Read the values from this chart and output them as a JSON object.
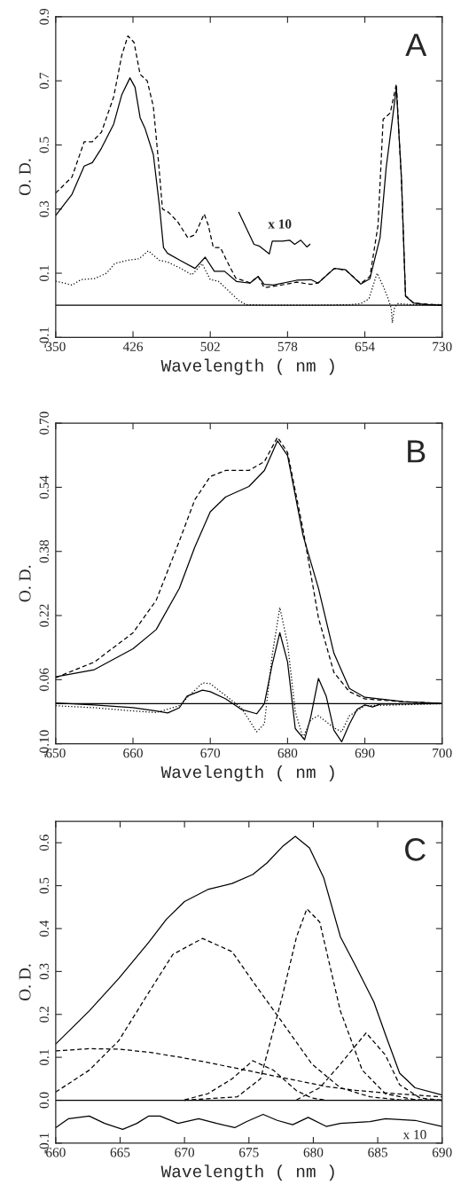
{
  "chart_data": [
    {
      "type": "line",
      "xlabel": "Wavelength ( nm )",
      "ylabel": "O. D.",
      "annotations": [
        "A",
        "x 10"
      ],
      "xlim": [
        350,
        730
      ],
      "xticks": [
        350,
        426,
        502,
        578,
        654,
        730
      ],
      "ylim": [
        -0.1,
        0.9
      ],
      "yticks": [
        -0.1,
        0.1,
        0.3,
        0.5,
        0.7,
        0.9
      ],
      "grid": false,
      "ref_lines": [
        {
          "axis": "y",
          "value": 0,
          "color": "#000000",
          "line_style": "solid"
        }
      ],
      "series": [
        {
          "color": "#000000",
          "line_style": "solid",
          "x": [
            350,
            366,
            378,
            386,
            395,
            407,
            415,
            423,
            428,
            433,
            438,
            446,
            452,
            456,
            460,
            473,
            487,
            497,
            506,
            516,
            528,
            541,
            549,
            555,
            564,
            587,
            601,
            608,
            624,
            635,
            650,
            659,
            669,
            675,
            680,
            685,
            690,
            694,
            702,
            713,
            730
          ],
          "values": [
            0.28,
            0.346,
            0.434,
            0.445,
            0.49,
            0.565,
            0.657,
            0.709,
            0.68,
            0.585,
            0.55,
            0.47,
            0.31,
            0.18,
            0.162,
            0.139,
            0.115,
            0.15,
            0.106,
            0.106,
            0.074,
            0.069,
            0.09,
            0.065,
            0.063,
            0.078,
            0.08,
            0.069,
            0.115,
            0.111,
            0.066,
            0.083,
            0.212,
            0.43,
            0.554,
            0.676,
            0.397,
            0.028,
            0.007,
            0.002,
            0.0
          ]
        },
        {
          "color": "#000000",
          "line_style": "dashed",
          "x": [
            350,
            366,
            378,
            386,
            395,
            407,
            415,
            421,
            427,
            433,
            440,
            446,
            451,
            455,
            461,
            470,
            480,
            487,
            496,
            500,
            505,
            512,
            518,
            527,
            541,
            549,
            555,
            570,
            587,
            601,
            608,
            624,
            635,
            650,
            659,
            667,
            672,
            679,
            685,
            690,
            694,
            702,
            730
          ],
          "values": [
            0.35,
            0.4,
            0.51,
            0.51,
            0.54,
            0.65,
            0.78,
            0.84,
            0.82,
            0.72,
            0.7,
            0.62,
            0.45,
            0.3,
            0.29,
            0.26,
            0.21,
            0.22,
            0.285,
            0.25,
            0.18,
            0.18,
            0.14,
            0.085,
            0.07,
            0.09,
            0.055,
            0.062,
            0.072,
            0.065,
            0.07,
            0.115,
            0.11,
            0.068,
            0.09,
            0.25,
            0.58,
            0.6,
            0.69,
            0.39,
            0.03,
            0.007,
            0.0
          ]
        },
        {
          "color": "#000000",
          "line_style": "dotted",
          "x": [
            350,
            357,
            366,
            375,
            388,
            400,
            408,
            420,
            432,
            441,
            452,
            460,
            473,
            484,
            494,
            502,
            510,
            520,
            530,
            537,
            560,
            600,
            640,
            650,
            658,
            666,
            672,
            677,
            680,
            681,
            683,
            686,
            700,
            730
          ],
          "values": [
            0.075,
            0.07,
            0.063,
            0.08,
            0.083,
            0.1,
            0.13,
            0.14,
            0.145,
            0.17,
            0.14,
            0.135,
            0.115,
            0.095,
            0.13,
            0.08,
            0.075,
            0.045,
            0.015,
            0.002,
            0.0,
            0.0,
            0.002,
            0.005,
            0.02,
            0.1,
            0.06,
            0.02,
            -0.01,
            -0.055,
            -0.01,
            0.005,
            0.002,
            0.002
          ]
        },
        {
          "color": "#000000",
          "line_style": "solid",
          "x": [
            530,
            536,
            545,
            550,
            560,
            563,
            573,
            580,
            585,
            591,
            597,
            600
          ],
          "values": [
            0.29,
            0.25,
            0.19,
            0.185,
            0.16,
            0.2,
            0.2,
            0.203,
            0.19,
            0.203,
            0.182,
            0.19
          ]
        }
      ]
    },
    {
      "type": "line",
      "xlabel": "Wavelength ( nm )",
      "ylabel": "O. D.",
      "annotations": [
        "B"
      ],
      "xlim": [
        650,
        700
      ],
      "xticks": [
        650,
        660,
        670,
        680,
        690,
        700
      ],
      "ylim": [
        -0.1,
        0.7
      ],
      "yticks": [
        {
          "value": -0.1,
          "label": "-0.10"
        },
        0.06,
        0.22,
        0.38,
        0.54,
        {
          "value": 0.7,
          "label": "0.70"
        }
      ],
      "grid": false,
      "ref_lines": [
        {
          "axis": "y",
          "value": 0,
          "color": "#000000",
          "line_style": "solid"
        }
      ],
      "series": [
        {
          "color": "#000000",
          "line_style": "solid",
          "x": [
            650,
            655,
            660,
            663,
            666,
            668,
            670,
            672,
            675,
            677,
            678.7,
            680,
            682,
            684,
            686,
            688,
            690,
            695,
            700
          ],
          "values": [
            0.067,
            0.085,
            0.137,
            0.185,
            0.288,
            0.391,
            0.479,
            0.516,
            0.542,
            0.582,
            0.656,
            0.619,
            0.42,
            0.288,
            0.126,
            0.038,
            0.016,
            0.005,
            0.001
          ]
        },
        {
          "color": "#000000",
          "line_style": "dashed",
          "x": [
            650,
            655,
            660,
            663,
            666,
            668,
            670,
            672,
            675,
            677,
            678.7,
            680,
            682,
            684,
            686,
            688,
            690,
            695,
            700
          ],
          "values": [
            0.065,
            0.104,
            0.177,
            0.258,
            0.406,
            0.509,
            0.567,
            0.582,
            0.582,
            0.604,
            0.665,
            0.627,
            0.435,
            0.214,
            0.078,
            0.03,
            0.012,
            0.005,
            0.001
          ]
        },
        {
          "color": "#000000",
          "line_style": "solid",
          "x": [
            650,
            655,
            660,
            663,
            664.5,
            666,
            667,
            669,
            670,
            672,
            674,
            676,
            677,
            678,
            679,
            680,
            681,
            682.2,
            683,
            684,
            685,
            686,
            687,
            688,
            689,
            690,
            691,
            692,
            700
          ],
          "values": [
            0.002,
            -0.003,
            -0.01,
            -0.018,
            -0.023,
            -0.01,
            0.019,
            0.034,
            0.03,
            0.012,
            -0.014,
            -0.025,
            0.0,
            0.097,
            0.177,
            0.104,
            -0.062,
            -0.09,
            -0.033,
            0.063,
            0.019,
            -0.066,
            -0.095,
            -0.051,
            -0.014,
            -0.003,
            -0.008,
            -0.001,
            0.0
          ]
        },
        {
          "color": "#000000",
          "line_style": "dotted",
          "x": [
            650,
            655,
            660,
            663,
            666,
            667,
            669,
            670,
            672,
            674,
            676,
            677,
            678,
            679,
            680,
            681,
            682,
            683,
            684,
            686,
            687,
            688,
            690,
            700
          ],
          "values": [
            -0.005,
            -0.01,
            -0.018,
            -0.022,
            -0.005,
            0.015,
            0.052,
            0.05,
            0.02,
            -0.01,
            -0.07,
            -0.05,
            0.12,
            0.24,
            0.15,
            -0.02,
            -0.085,
            -0.04,
            -0.03,
            -0.06,
            -0.07,
            -0.03,
            -0.005,
            0.0
          ]
        }
      ]
    },
    {
      "type": "line",
      "xlabel": "Wavelength ( nm )",
      "ylabel": "O. D.",
      "annotations": [
        "C",
        "x 10"
      ],
      "xlim": [
        660,
        690
      ],
      "xticks": [
        660,
        665,
        670,
        675,
        680,
        685,
        690
      ],
      "ylim": [
        -0.1,
        0.65
      ],
      "yticks": [
        -0.1,
        {
          "value": 0,
          "label": "0.0"
        },
        0.1,
        0.2,
        0.3,
        0.4,
        0.5,
        0.6
      ],
      "grid": false,
      "ref_lines": [
        {
          "axis": "y",
          "value": 0,
          "color": "#000000",
          "line_style": "solid"
        }
      ],
      "series": [
        {
          "color": "#000000",
          "line_style": "solid",
          "x": [
            660,
            662.6,
            664.9,
            667.2,
            668.6,
            670,
            671.8,
            673.7,
            675.3,
            676.4,
            677.6,
            678.6,
            679.7,
            680.8,
            682.1,
            683.3,
            684.7,
            685.6,
            686.7,
            687.9,
            690
          ],
          "values": [
            0.131,
            0.208,
            0.284,
            0.367,
            0.422,
            0.463,
            0.491,
            0.505,
            0.526,
            0.553,
            0.591,
            0.615,
            0.588,
            0.519,
            0.381,
            0.312,
            0.229,
            0.153,
            0.063,
            0.029,
            0.012
          ]
        },
        {
          "color": "#000000",
          "line_style": "dashed",
          "x": [
            660,
            662.6,
            664.9,
            667.2,
            669.1,
            671.4,
            673.7,
            675.3,
            677.6,
            679.9,
            682.1,
            684.4,
            686.7,
            690
          ],
          "values": [
            0.019,
            0.07,
            0.139,
            0.25,
            0.34,
            0.377,
            0.346,
            0.277,
            0.181,
            0.084,
            0.029,
            0.008,
            0.001,
            0.0
          ]
        },
        {
          "color": "#000000",
          "line_style": "dashed",
          "x": [
            670,
            674.1,
            675.9,
            677.6,
            678.7,
            679.5,
            680.5,
            682.1,
            683.8,
            685.6,
            687.9,
            690
          ],
          "values": [
            0.0,
            0.008,
            0.05,
            0.243,
            0.381,
            0.446,
            0.415,
            0.208,
            0.07,
            0.015,
            0.001,
            0.0
          ]
        },
        {
          "color": "#000000",
          "line_style": "dashed",
          "x": [
            670,
            671.8,
            673.7,
            675.3,
            676.9,
            678.7,
            679.9,
            681
          ],
          "values": [
            0.001,
            0.015,
            0.05,
            0.092,
            0.07,
            0.022,
            0.005,
            0.0
          ]
        },
        {
          "color": "#000000",
          "line_style": "dashed",
          "x": [
            678.7,
            680.5,
            682.1,
            684.1,
            685.6,
            686.7,
            688.3,
            690
          ],
          "values": [
            0.001,
            0.029,
            0.084,
            0.157,
            0.105,
            0.036,
            0.005,
            0.0
          ]
        },
        {
          "color": "#000000",
          "line_style": "dashed",
          "x": [
            660,
            662.6,
            664.9,
            667.2,
            669.5,
            671.8,
            674.1,
            676.4,
            678.7,
            681,
            683.3,
            685.6,
            687.9,
            690
          ],
          "values": [
            0.115,
            0.12,
            0.119,
            0.112,
            0.101,
            0.088,
            0.074,
            0.06,
            0.046,
            0.032,
            0.023,
            0.017,
            0.012,
            0.008
          ]
        },
        {
          "color": "#000000",
          "line_style": "solid",
          "x": [
            660,
            661,
            662.6,
            663.8,
            665.2,
            666.3,
            667.2,
            668.1,
            669.5,
            671.1,
            672.5,
            673.9,
            674.8,
            676.1,
            677.2,
            678.4,
            679.6,
            681,
            682.1,
            684.4,
            685.6,
            687.9,
            690
          ],
          "values": [
            -0.064,
            -0.043,
            -0.037,
            -0.054,
            -0.068,
            -0.054,
            -0.037,
            -0.037,
            -0.054,
            -0.043,
            -0.054,
            -0.064,
            -0.05,
            -0.033,
            -0.047,
            -0.057,
            -0.04,
            -0.061,
            -0.054,
            -0.05,
            -0.043,
            -0.047,
            -0.061
          ]
        }
      ]
    }
  ]
}
